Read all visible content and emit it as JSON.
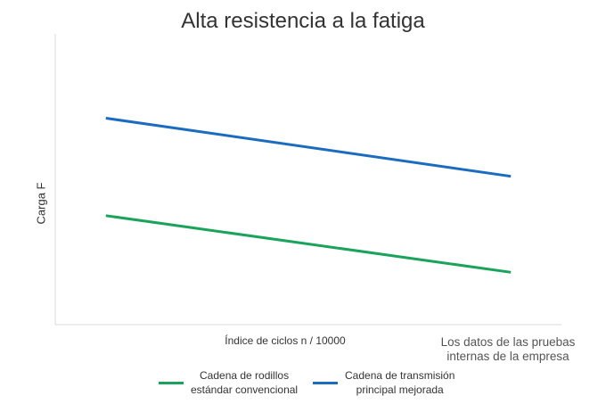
{
  "chart_data": {
    "type": "line",
    "title": "Alta resistencia a la fatiga",
    "xlabel": "Índice de ciclos n / 10000",
    "ylabel": "Carga F",
    "x_ticks": false,
    "y_ticks": false,
    "grid": false,
    "legend_position": "bottom",
    "xlim": [
      0,
      10
    ],
    "ylim": [
      0,
      10
    ],
    "x": [
      1,
      9
    ],
    "series": [
      {
        "name_lines": [
          "Cadena de rodillos",
          "estándar convencional"
        ],
        "color": "#1aa35a",
        "values": [
          3.75,
          1.8
        ]
      },
      {
        "name_lines": [
          "Cadena de transmisión",
          "principal mejorada"
        ],
        "color": "#1b6cc1",
        "values": [
          7.1,
          5.1
        ]
      }
    ],
    "note_lines": [
      "Los datos de las pruebas",
      "internas de la empresa"
    ]
  }
}
